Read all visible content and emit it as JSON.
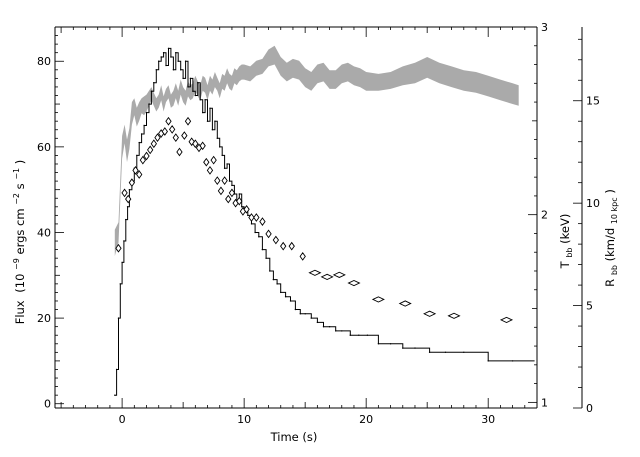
{
  "chart_data": {
    "type": "line",
    "title": "",
    "xlabel": "Time (s)",
    "xlim": [
      -5.5,
      34
    ],
    "x_ticks": [
      0,
      10,
      20,
      30
    ],
    "y_left": {
      "label": "Flux",
      "unit_prefix": "(10",
      "exp_minus9": "−9",
      "unit_mid": " ergs cm",
      "exp_minus2": "−2",
      "unit_s": " s",
      "exp_minus1": "−1",
      "unit_close": ")",
      "lim": [
        -1,
        88
      ],
      "ticks": [
        0,
        20,
        40,
        60,
        80
      ]
    },
    "y_temp": {
      "label_T": "T",
      "label_sub": "bb",
      "label_unit": " (keV)",
      "lim": [
        0.97,
        3.0
      ],
      "ticks": [
        1,
        2,
        3
      ]
    },
    "y_radius": {
      "label_R": "R",
      "label_sub": "bb",
      "label_unit_pre": " (km/d",
      "label_unit_sub": "10 kpc",
      "label_unit_post": ")",
      "lim": [
        0,
        18.6
      ],
      "ticks": [
        0,
        5,
        10,
        15
      ]
    },
    "grid": false,
    "series": [
      {
        "style": "step",
        "axis": "flux",
        "x": [
          -0.6,
          -0.45,
          -0.3,
          -0.15,
          0.0,
          0.15,
          0.3,
          0.45,
          0.6,
          0.8,
          1.0,
          1.2,
          1.4,
          1.6,
          1.8,
          2.0,
          2.2,
          2.4,
          2.6,
          2.8,
          3.0,
          3.2,
          3.4,
          3.6,
          3.8,
          4.0,
          4.2,
          4.4,
          4.6,
          4.8,
          5.0,
          5.2,
          5.4,
          5.6,
          5.8,
          6.0,
          6.2,
          6.4,
          6.6,
          6.8,
          7.0,
          7.2,
          7.4,
          7.6,
          7.8,
          8.0,
          8.2,
          8.4,
          8.6,
          8.8,
          9.0,
          9.2,
          9.4,
          9.6,
          9.8,
          10.0,
          10.3,
          10.6,
          10.9,
          11.2,
          11.5,
          11.8,
          12.1,
          12.4,
          12.7,
          13.0,
          13.4,
          13.8,
          14.2,
          14.6,
          15.0,
          15.5,
          16.0,
          16.5,
          17.0,
          17.5,
          18.0,
          18.7,
          19.4,
          20.1,
          21.0,
          22.0,
          23.0,
          24.0,
          25.2,
          26.5,
          28.0,
          30.0,
          32.0
        ],
        "y": [
          2,
          8,
          20,
          28,
          33,
          38,
          43,
          46,
          50,
          52,
          55,
          58,
          61,
          63,
          65,
          68,
          70,
          73,
          75,
          78,
          80,
          81,
          82,
          79,
          83,
          81,
          78,
          82,
          80,
          78,
          76,
          80,
          74,
          76,
          73,
          72,
          75,
          71,
          68,
          71,
          66,
          69,
          64,
          66,
          62,
          60,
          58,
          55,
          56,
          52,
          51,
          49,
          47,
          49,
          46,
          45,
          44,
          42,
          40,
          39,
          36,
          34,
          31,
          29,
          28,
          26,
          25,
          24,
          22,
          21,
          21,
          20,
          19,
          18,
          18,
          17,
          17,
          16,
          16,
          16,
          14,
          14,
          13,
          13,
          12,
          12,
          12,
          10,
          10
        ]
      },
      {
        "style": "diamond",
        "axis": "radius",
        "x": [
          -0.3,
          0.2,
          0.5,
          0.8,
          1.1,
          1.4,
          1.7,
          2.0,
          2.3,
          2.6,
          2.9,
          3.2,
          3.5,
          3.8,
          4.1,
          4.4,
          4.7,
          5.1,
          5.4,
          5.7,
          6.0,
          6.3,
          6.6,
          6.9,
          7.2,
          7.5,
          7.8,
          8.1,
          8.4,
          8.7,
          9.0,
          9.3,
          9.6,
          9.9,
          10.2,
          10.6,
          11.0,
          11.5,
          12.0,
          12.6,
          13.2,
          13.9,
          14.8,
          15.8,
          16.8,
          17.8,
          19.0,
          21.0,
          23.2,
          25.2,
          27.2,
          31.5
        ],
        "y": [
          7.8,
          10.5,
          10.2,
          11.0,
          11.6,
          11.4,
          12.1,
          12.3,
          12.6,
          12.9,
          13.2,
          13.4,
          13.5,
          14.0,
          13.6,
          13.2,
          12.5,
          13.3,
          14.0,
          13.0,
          12.9,
          12.7,
          12.8,
          12.0,
          11.6,
          12.1,
          11.1,
          10.6,
          11.1,
          10.2,
          10.5,
          10.0,
          10.1,
          9.6,
          9.7,
          9.3,
          9.3,
          9.1,
          8.5,
          8.2,
          7.9,
          7.9,
          7.4,
          6.6,
          6.4,
          6.5,
          6.1,
          5.3,
          5.1,
          4.6,
          4.5,
          4.3
        ]
      },
      {
        "style": "band",
        "axis": "temperature",
        "x": [
          -0.6,
          -0.3,
          0.0,
          0.2,
          0.4,
          0.6,
          0.8,
          1.0,
          1.2,
          1.4,
          1.6,
          1.8,
          2.0,
          2.2,
          2.4,
          2.6,
          2.8,
          3.0,
          3.2,
          3.4,
          3.6,
          3.8,
          4.0,
          4.2,
          4.4,
          4.6,
          4.8,
          5.0,
          5.2,
          5.4,
          5.6,
          5.8,
          6.0,
          6.2,
          6.4,
          6.6,
          6.8,
          7.0,
          7.2,
          7.4,
          7.6,
          7.8,
          8.0,
          8.2,
          8.4,
          8.6,
          8.8,
          9.0,
          9.2,
          9.4,
          9.6,
          9.8,
          10.0,
          10.5,
          11.0,
          11.5,
          12.0,
          12.5,
          13.0,
          13.5,
          14.0,
          14.5,
          15.0,
          15.5,
          16.0,
          16.5,
          17.0,
          17.5,
          18.0,
          18.5,
          19.0,
          19.5,
          20.0,
          21.0,
          22.0,
          23.0,
          24.0,
          25.0,
          26.0,
          27.0,
          28.0,
          29.0,
          30.0,
          31.0,
          32.0,
          32.5
        ],
        "low": [
          1.78,
          1.85,
          2.3,
          2.38,
          2.28,
          2.35,
          2.48,
          2.53,
          2.47,
          2.5,
          2.54,
          2.53,
          2.55,
          2.58,
          2.61,
          2.58,
          2.55,
          2.57,
          2.61,
          2.55,
          2.6,
          2.62,
          2.57,
          2.58,
          2.62,
          2.58,
          2.64,
          2.6,
          2.58,
          2.63,
          2.61,
          2.62,
          2.66,
          2.63,
          2.61,
          2.66,
          2.65,
          2.61,
          2.66,
          2.64,
          2.68,
          2.66,
          2.62,
          2.67,
          2.66,
          2.7,
          2.67,
          2.66,
          2.7,
          2.69,
          2.71,
          2.72,
          2.72,
          2.71,
          2.74,
          2.75,
          2.79,
          2.8,
          2.74,
          2.71,
          2.73,
          2.72,
          2.68,
          2.66,
          2.7,
          2.71,
          2.67,
          2.67,
          2.7,
          2.71,
          2.69,
          2.68,
          2.66,
          2.66,
          2.67,
          2.69,
          2.7,
          2.73,
          2.7,
          2.68,
          2.66,
          2.65,
          2.63,
          2.61,
          2.59,
          2.58
        ],
        "high": [
          1.92,
          1.96,
          2.42,
          2.48,
          2.4,
          2.46,
          2.6,
          2.62,
          2.57,
          2.6,
          2.62,
          2.63,
          2.64,
          2.66,
          2.68,
          2.65,
          2.62,
          2.64,
          2.69,
          2.63,
          2.67,
          2.69,
          2.64,
          2.66,
          2.7,
          2.66,
          2.72,
          2.68,
          2.66,
          2.71,
          2.69,
          2.7,
          2.74,
          2.71,
          2.69,
          2.74,
          2.73,
          2.69,
          2.74,
          2.72,
          2.76,
          2.73,
          2.7,
          2.75,
          2.74,
          2.78,
          2.75,
          2.74,
          2.78,
          2.77,
          2.79,
          2.8,
          2.8,
          2.79,
          2.82,
          2.83,
          2.88,
          2.9,
          2.84,
          2.81,
          2.83,
          2.82,
          2.78,
          2.76,
          2.8,
          2.81,
          2.77,
          2.77,
          2.8,
          2.81,
          2.79,
          2.78,
          2.76,
          2.75,
          2.76,
          2.79,
          2.81,
          2.84,
          2.81,
          2.79,
          2.77,
          2.76,
          2.74,
          2.72,
          2.7,
          2.69
        ],
        "color": "#aaaaaa"
      }
    ]
  }
}
